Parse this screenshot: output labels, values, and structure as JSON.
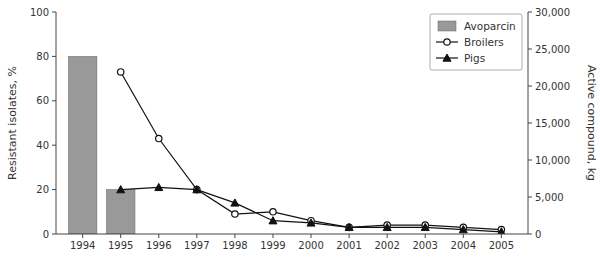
{
  "chart_data": {
    "type": "bar",
    "series": [
      {
        "name": "Avoparcin",
        "type": "bar",
        "color": "#999999",
        "x": [
          1994,
          1995
        ],
        "values": [
          80,
          20
        ]
      },
      {
        "name": "Broilers",
        "type": "line",
        "marker": "circle",
        "color": "#111111",
        "x": [
          1995,
          1996,
          1997,
          1998,
          1999,
          2000,
          2001,
          2002,
          2003,
          2004,
          2005
        ],
        "values": [
          73,
          43,
          20,
          9,
          10,
          6,
          3,
          4,
          4,
          3,
          2
        ]
      },
      {
        "name": "Pigs",
        "type": "line",
        "marker": "triangle",
        "color": "#111111",
        "x": [
          1995,
          1996,
          1997,
          1998,
          1999,
          2000,
          2001,
          2002,
          2003,
          2004,
          2005
        ],
        "values": [
          20,
          21,
          20,
          14,
          6,
          5,
          3,
          3,
          3,
          2,
          1
        ]
      }
    ],
    "xlim": [
      1993.3,
      2005.7
    ],
    "xticks": [
      1994,
      1995,
      1996,
      1997,
      1998,
      1999,
      2000,
      2001,
      2002,
      2003,
      2004,
      2005
    ],
    "ylim": [
      0,
      100
    ],
    "yticks": [
      0,
      20,
      40,
      60,
      80,
      100
    ],
    "y_label": "Resistant isolates, %",
    "y2lim": [
      0,
      30000
    ],
    "y2ticks": [
      0,
      {
        "value": 5000,
        "label": "5,000"
      },
      {
        "value": 10000,
        "label": "10,000"
      },
      {
        "value": 15000,
        "label": "15,000"
      },
      {
        "value": 20000,
        "label": "20,000"
      },
      {
        "value": 25000,
        "label": "25,000"
      },
      {
        "value": 30000,
        "label": "30,000"
      }
    ],
    "y2_label": "Active compound, kg",
    "legend": "upper right",
    "grid": false
  }
}
